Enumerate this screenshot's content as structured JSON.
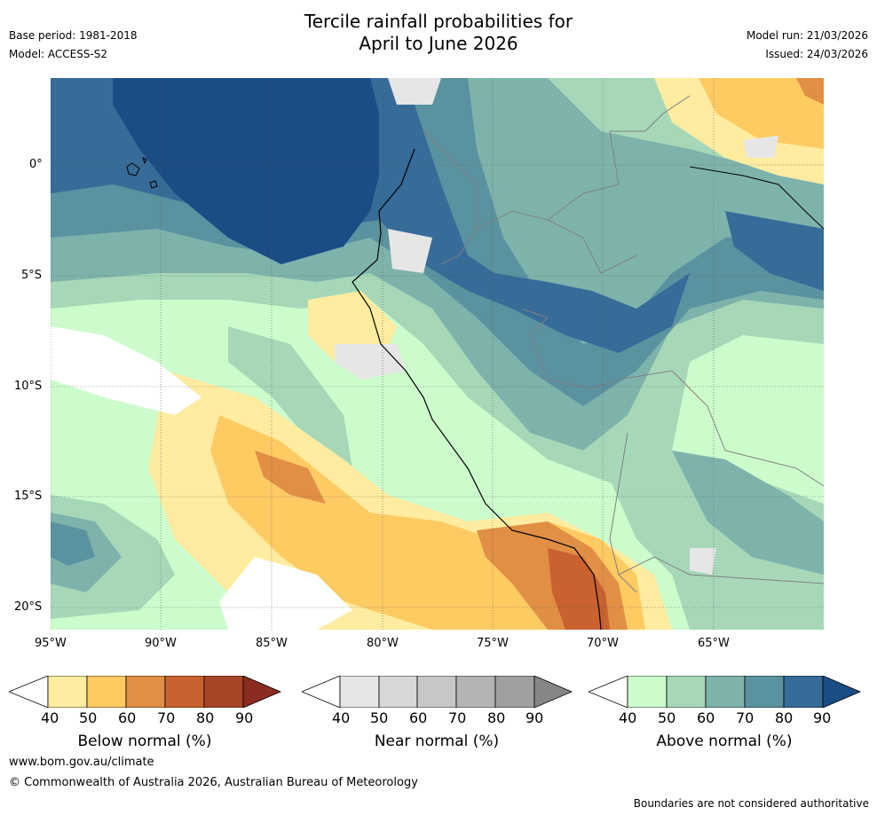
{
  "title_line1": "Tercile rainfall probabilities for",
  "title_line2": "April to June 2026",
  "base_period": "Base period: 1981-2018",
  "model": "Model: ACCESS-S2",
  "model_run": "Model run: 21/03/2026",
  "issued": "Issued: 24/03/2026",
  "lat_labels": [
    "0°",
    "5°S",
    "10°S",
    "15°S",
    "20°S"
  ],
  "lon_labels": [
    "95°W",
    "90°W",
    "85°W",
    "80°W",
    "75°W",
    "70°W",
    "65°W"
  ],
  "colorbars": [
    {
      "title": "Below normal (%)",
      "ticks": [
        "40",
        "50",
        "60",
        "70",
        "80",
        "90"
      ],
      "colors": [
        "#ffeca0",
        "#fecb63",
        "#e08f45",
        "#c9622f",
        "#a94527",
        "#8a2c1f"
      ]
    },
    {
      "title": "Near normal (%)",
      "ticks": [
        "40",
        "50",
        "60",
        "70",
        "80",
        "90"
      ],
      "colors": [
        "#e6e6e6",
        "#d7d7d7",
        "#c7c7c7",
        "#b4b4b4",
        "#a0a0a0",
        "#868686"
      ]
    },
    {
      "title": "Above normal (%)",
      "ticks": [
        "40",
        "50",
        "60",
        "70",
        "80",
        "90"
      ],
      "colors": [
        "#ccfccc",
        "#a6d8b8",
        "#7eb3ac",
        "#5b92a0",
        "#376b98",
        "#1b4d84"
      ]
    }
  ],
  "footer_url": "www.bom.gov.au/climate",
  "footer_copyright": "© Commonwealth of Australia 2026, Australian Bureau of Meteorology",
  "footer_disclaimer": "Boundaries are not considered authoritative"
}
